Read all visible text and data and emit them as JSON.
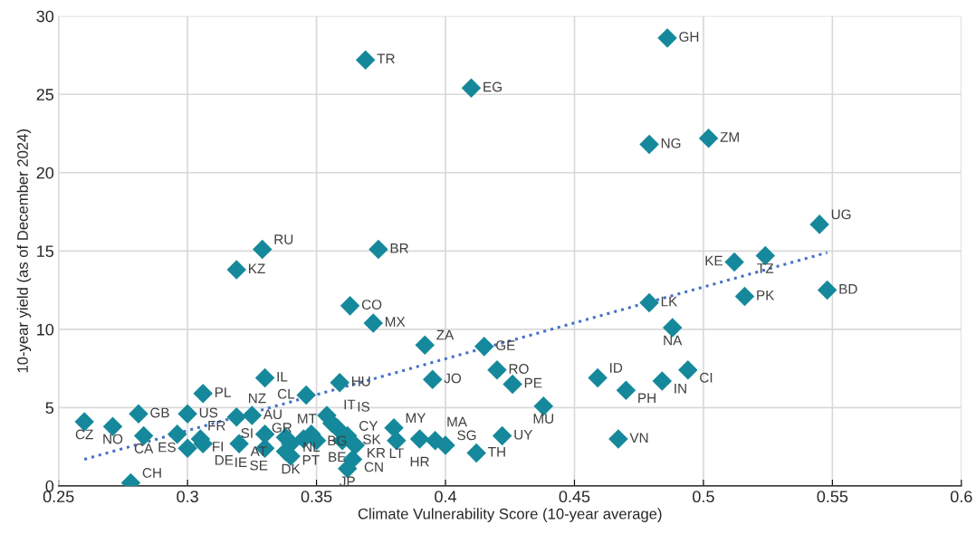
{
  "chart_data": {
    "type": "scatter",
    "xlabel": "Climate Vulnerability Score (10-year average)",
    "ylabel": "10-year yield (as of December 2024)",
    "xlim": [
      0.25,
      0.6
    ],
    "ylim": [
      0,
      30
    ],
    "xticks": [
      0.25,
      0.3,
      0.35,
      0.4,
      0.45,
      0.5,
      0.55,
      0.6
    ],
    "yticks": [
      0,
      5,
      10,
      15,
      20,
      25,
      30
    ],
    "grid": true,
    "marker": "diamond",
    "series": [
      {
        "color": "#15899b",
        "x": [
          0.369,
          0.41,
          0.486,
          0.479,
          0.502,
          0.545,
          0.524,
          0.512,
          0.548,
          0.516,
          0.479,
          0.488,
          0.494,
          0.484,
          0.47,
          0.459,
          0.467,
          0.438,
          0.426,
          0.42,
          0.415,
          0.395,
          0.392,
          0.359,
          0.346,
          0.372,
          0.363,
          0.374,
          0.329,
          0.319,
          0.33,
          0.306,
          0.278,
          0.26,
          0.271,
          0.281,
          0.283,
          0.3,
          0.3,
          0.296,
          0.306,
          0.305,
          0.32,
          0.325,
          0.33,
          0.33,
          0.319,
          0.338,
          0.338,
          0.34,
          0.345,
          0.348,
          0.35,
          0.34,
          0.356,
          0.354,
          0.36,
          0.358,
          0.362,
          0.365,
          0.364,
          0.362,
          0.381,
          0.38,
          0.39,
          0.396,
          0.4,
          0.412,
          0.422
        ],
        "values": [
          27.2,
          25.4,
          28.6,
          21.8,
          22.2,
          16.7,
          14.7,
          14.3,
          12.5,
          12.1,
          11.7,
          10.1,
          7.4,
          6.7,
          6.1,
          6.9,
          3.0,
          5.1,
          6.5,
          7.4,
          8.9,
          6.8,
          9.0,
          6.6,
          5.8,
          10.4,
          11.5,
          15.1,
          15.1,
          13.8,
          6.9,
          5.9,
          0.2,
          4.1,
          3.8,
          4.6,
          3.2,
          4.6,
          2.4,
          3.3,
          2.7,
          3.0,
          2.7,
          4.5,
          2.4,
          3.3,
          4.4,
          3.1,
          2.2,
          2.7,
          3.0,
          3.3,
          2.9,
          1.9,
          4.0,
          4.5,
          2.9,
          3.7,
          3.2,
          2.6,
          1.7,
          1.1,
          2.9,
          3.7,
          3.0,
          2.9,
          2.6,
          2.1,
          3.2
        ]
      },
      {
        "type": "line",
        "color": "#4472c4",
        "line_style": "dotted",
        "marker": "none",
        "x": [
          0.26,
          0.548
        ],
        "values": [
          1.7,
          14.9
        ]
      }
    ],
    "annotations": [
      {
        "text": "TR",
        "x": 0.369,
        "y": 27.2
      },
      {
        "text": "EG",
        "x": 0.41,
        "y": 25.4
      },
      {
        "text": "GH",
        "x": 0.486,
        "y": 28.6
      },
      {
        "text": "NG",
        "x": 0.479,
        "y": 21.8
      },
      {
        "text": "ZM",
        "x": 0.502,
        "y": 22.2
      },
      {
        "text": "UG",
        "x": 0.545,
        "y": 16.7
      },
      {
        "text": "TZ",
        "x": 0.524,
        "y": 14.7
      },
      {
        "text": "KE",
        "x": 0.512,
        "y": 14.3
      },
      {
        "text": "BD",
        "x": 0.548,
        "y": 12.5
      },
      {
        "text": "PK",
        "x": 0.516,
        "y": 12.1
      },
      {
        "text": "LK",
        "x": 0.479,
        "y": 11.7
      },
      {
        "text": "NA",
        "x": 0.488,
        "y": 10.1
      },
      {
        "text": "CI",
        "x": 0.494,
        "y": 7.4
      },
      {
        "text": "IN",
        "x": 0.484,
        "y": 6.7
      },
      {
        "text": "PH",
        "x": 0.47,
        "y": 6.1
      },
      {
        "text": "ID",
        "x": 0.459,
        "y": 6.9
      },
      {
        "text": "VN",
        "x": 0.467,
        "y": 3.0
      },
      {
        "text": "MU",
        "x": 0.438,
        "y": 5.1
      },
      {
        "text": "PE",
        "x": 0.426,
        "y": 6.5
      },
      {
        "text": "RO",
        "x": 0.42,
        "y": 7.4
      },
      {
        "text": "GE",
        "x": 0.415,
        "y": 8.9
      },
      {
        "text": "JO",
        "x": 0.395,
        "y": 6.8
      },
      {
        "text": "ZA",
        "x": 0.392,
        "y": 9.0
      },
      {
        "text": "HU",
        "x": 0.359,
        "y": 6.6
      },
      {
        "text": "CL",
        "x": 0.346,
        "y": 5.8
      },
      {
        "text": "MX",
        "x": 0.372,
        "y": 10.4
      },
      {
        "text": "CO",
        "x": 0.363,
        "y": 11.5
      },
      {
        "text": "BR",
        "x": 0.374,
        "y": 15.1
      },
      {
        "text": "RU",
        "x": 0.329,
        "y": 15.1
      },
      {
        "text": "KZ",
        "x": 0.319,
        "y": 13.8
      },
      {
        "text": "IL",
        "x": 0.33,
        "y": 6.9
      },
      {
        "text": "PL",
        "x": 0.306,
        "y": 5.9
      },
      {
        "text": "CH",
        "x": 0.278,
        "y": 0.2
      },
      {
        "text": "CZ",
        "x": 0.26,
        "y": 4.1
      },
      {
        "text": "NO",
        "x": 0.271,
        "y": 3.8
      },
      {
        "text": "GB",
        "x": 0.281,
        "y": 4.6
      },
      {
        "text": "CA",
        "x": 0.283,
        "y": 3.2
      },
      {
        "text": "US",
        "x": 0.3,
        "y": 4.6
      },
      {
        "text": "ES",
        "x": 0.3,
        "y": 2.4
      },
      {
        "text": "FR",
        "x": 0.296,
        "y": 3.3
      },
      {
        "text": "DE",
        "x": 0.306,
        "y": 2.7
      },
      {
        "text": "FI",
        "x": 0.305,
        "y": 3.0
      },
      {
        "text": "AT",
        "x": 0.32,
        "y": 2.7
      },
      {
        "text": "AU",
        "x": 0.325,
        "y": 4.5
      },
      {
        "text": "IE",
        "x": 0.33,
        "y": 2.4
      },
      {
        "text": "SI",
        "x": 0.33,
        "y": 3.3
      },
      {
        "text": "NZ",
        "x": 0.319,
        "y": 4.4
      },
      {
        "text": "MT",
        "x": 0.338,
        "y": 3.1
      },
      {
        "text": "SE",
        "x": 0.338,
        "y": 2.2
      },
      {
        "text": "PT",
        "x": 0.34,
        "y": 2.7
      },
      {
        "text": "GR",
        "x": 0.345,
        "y": 3.0
      },
      {
        "text": "NL",
        "x": 0.348,
        "y": 3.3
      },
      {
        "text": "BE",
        "x": 0.35,
        "y": 2.9
      },
      {
        "text": "DK",
        "x": 0.34,
        "y": 1.9
      },
      {
        "text": "IT",
        "x": 0.356,
        "y": 4.0
      },
      {
        "text": "IS",
        "x": 0.354,
        "y": 4.5
      },
      {
        "text": "SK",
        "x": 0.36,
        "y": 2.9
      },
      {
        "text": "BG",
        "x": 0.358,
        "y": 3.7
      },
      {
        "text": "CY",
        "x": 0.362,
        "y": 3.2
      },
      {
        "text": "KR",
        "x": 0.365,
        "y": 2.6
      },
      {
        "text": "CN",
        "x": 0.364,
        "y": 1.7
      },
      {
        "text": "JP",
        "x": 0.362,
        "y": 1.1
      },
      {
        "text": "LT",
        "x": 0.381,
        "y": 2.9
      },
      {
        "text": "MY",
        "x": 0.38,
        "y": 3.7
      },
      {
        "text": "HR",
        "x": 0.39,
        "y": 3.0
      },
      {
        "text": "MA",
        "x": 0.396,
        "y": 2.9
      },
      {
        "text": "SG",
        "x": 0.4,
        "y": 2.6
      },
      {
        "text": "TH",
        "x": 0.412,
        "y": 2.1
      },
      {
        "text": "UY",
        "x": 0.422,
        "y": 3.2
      }
    ]
  }
}
